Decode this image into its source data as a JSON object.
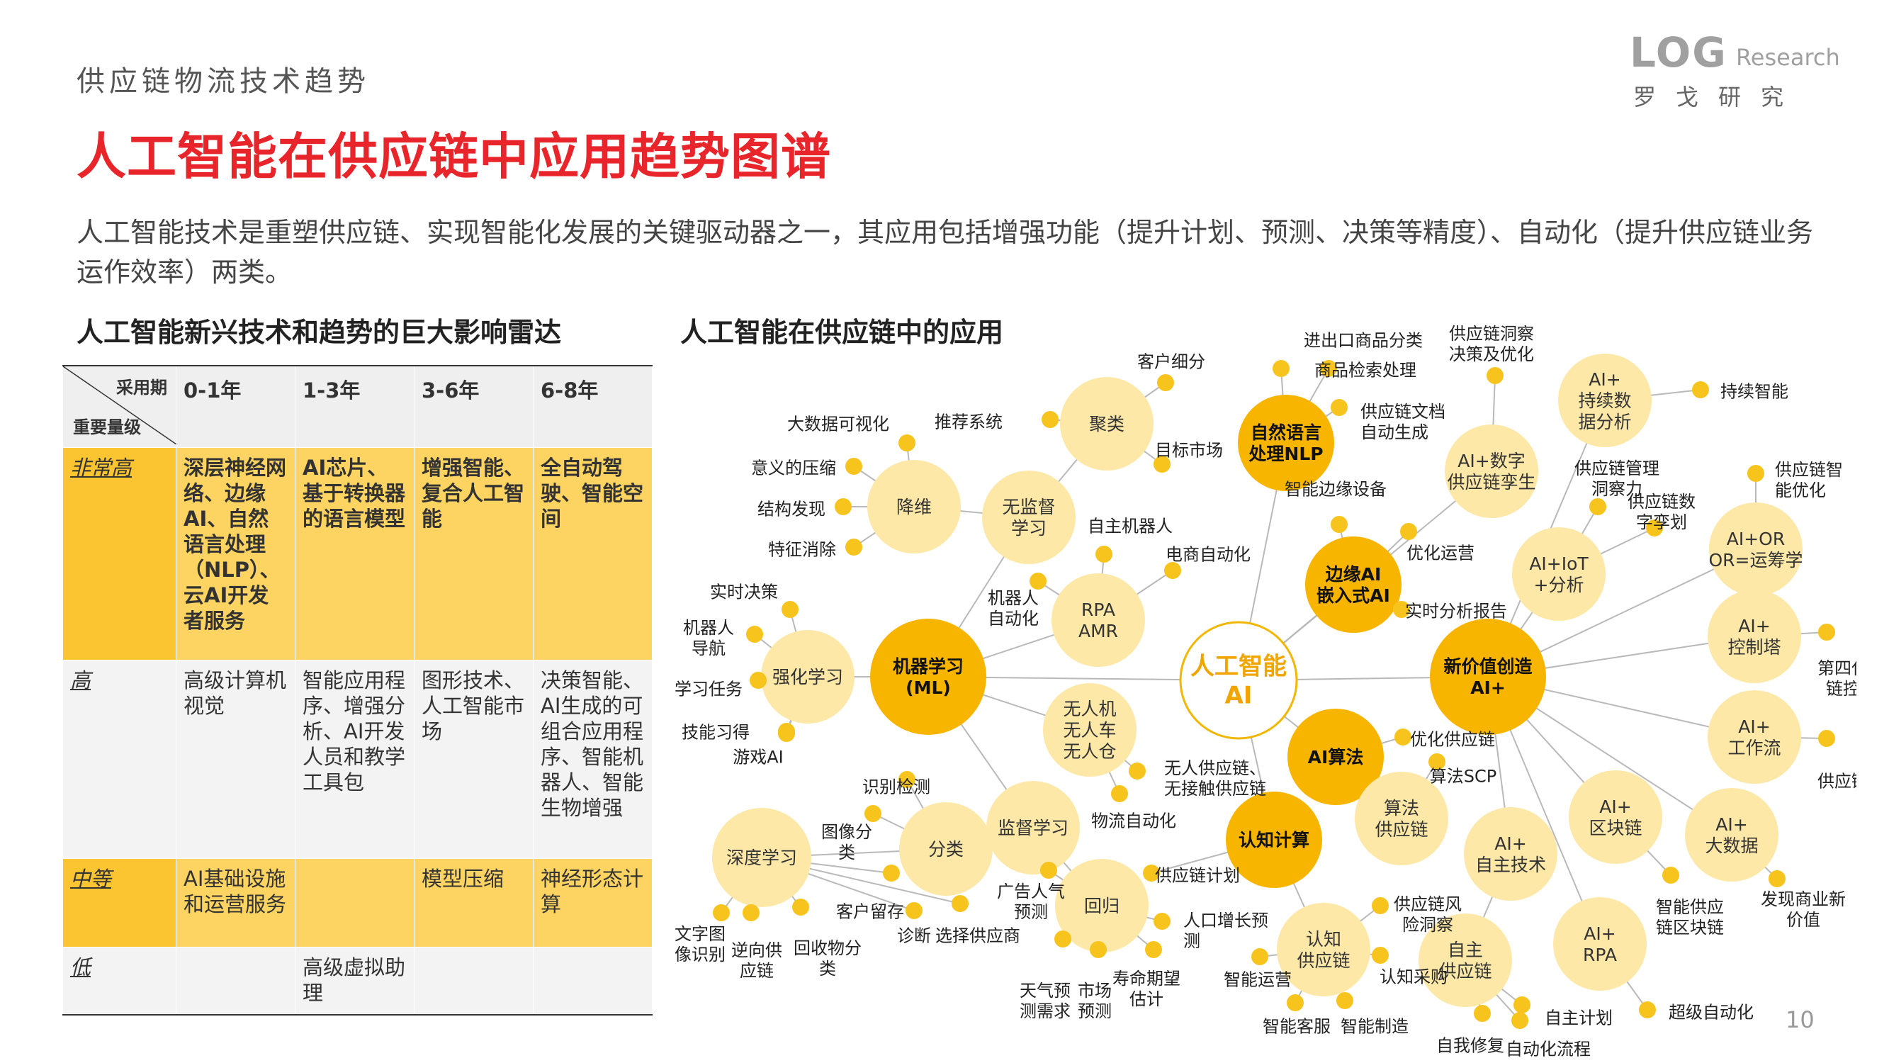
{
  "header": {
    "top_label": "供应链物流技术趋势",
    "title": "人工智能在供应链中应用趋势图谱",
    "intro": "人工智能技术是重塑供应链、实现智能化发展的关键驱动器之一，其应用包括增强功能（提升计划、预测、决策等精度）、自动化（提升供应链业务运作效率）两类。"
  },
  "logo": {
    "word": "LOG",
    "research": "Research",
    "cn": "罗戈研究"
  },
  "left_heading": "人工智能新兴技术和趋势的巨大影响雷达",
  "right_heading": "人工智能在供应链中的应用",
  "table": {
    "corner_top": "采用期",
    "corner_bottom": "重要量级",
    "columns": [
      "0-1年",
      "1-3年",
      "3-6年",
      "6-8年"
    ],
    "rows": [
      {
        "level": "非常高",
        "cells": [
          "深层神经网络、边缘AI、自然语言处理（NLP）、云AI开发者服务",
          "AI芯片、基于转换器的语言模型",
          "增强智能、复合人工智能",
          "全自动驾驶、智能空间"
        ]
      },
      {
        "level": "高",
        "cells": [
          "高级计算机视觉",
          "智能应用程序、增强分析、AI开发人员和教学工具包",
          "图形技术、人工智能市场",
          "决策智能、AI生成的可组合应用程序、智能机器人、智能生物增强"
        ]
      },
      {
        "level": "中等",
        "cells": [
          "AI基础设施和运营服务",
          "",
          "模型压缩",
          "神经形态计算"
        ]
      },
      {
        "level": "低",
        "cells": [
          "",
          "高级虚拟助理",
          "",
          ""
        ]
      }
    ]
  },
  "diagram": {
    "center": "人工智能 AI",
    "hubs": [
      {
        "id": "ml",
        "label": "机器学习 (ML)"
      },
      {
        "id": "new",
        "label": "新价值创造 AI+"
      },
      {
        "id": "nlp",
        "label": "自然语言 处理NLP"
      },
      {
        "id": "edge",
        "label": "边缘AI 嵌入式AI"
      },
      {
        "id": "alg",
        "label": "AI算法"
      },
      {
        "id": "cog",
        "label": "认知计算"
      }
    ],
    "subs": [
      "聚类",
      "降维",
      "无监督 学习",
      "RPA AMR",
      "强化学习",
      "无人机 无人车 无人仓",
      "监督学习",
      "分类",
      "深度学习",
      "回归",
      "AI+数字 供应链孪生",
      "算法 供应链",
      "认知 供应链",
      "AI+ 自主技术",
      "自主 供应链",
      "AI+ 持续数 据分析",
      "AI+IoT +分析",
      "AI+OR OR=运筹学",
      "AI+ 控制塔",
      "AI+ 工作流",
      "AI+ 区块链",
      "AI+ 大数据",
      "AI+ RPA"
    ],
    "leaves": [
      "进出口商品分类",
      "客户细分",
      "商品检索处理",
      "供应链洞察 决策及优化",
      "供应链文档 自动生成",
      "目标市场",
      "推荐系统",
      "大数据可视化",
      "意义的压缩",
      "结构发现",
      "特征消除",
      "智能边缘设备",
      "自主机器人",
      "电商自动化",
      "优化运营",
      "实时分析报告",
      "机器人 自动化",
      "实时决策",
      "机器人 导航",
      "学习任务",
      "技能习得",
      "游戏AI",
      "优化供应链",
      "算法SCP",
      "无人供应链、 无接触供应链",
      "物流自动化",
      "识别检测",
      "图像分 类",
      "客户留存",
      "诊断",
      "选择供应商",
      "文字图 像识别",
      "逆向供 应链",
      "回收物分 类",
      "广告人气 预测",
      "天气预 测需求",
      "市场 预测",
      "寿命期望 估计",
      "人口增长预 测",
      "供应链计划",
      "供应链风 险洞察",
      "认知采购",
      "智能运营",
      "智能客服",
      "智能制造",
      "自主计划",
      "自我修复",
      "自动化流程",
      "持续智能",
      "供应链管理 洞察力",
      "供应链数 字孪划",
      "供应链智 能优化",
      "第四代供应 链控制塔",
      "供应链弹性",
      "智能供应 链区块链",
      "发现商业新 价值",
      "超级自动化"
    ]
  },
  "page_number": "10"
}
